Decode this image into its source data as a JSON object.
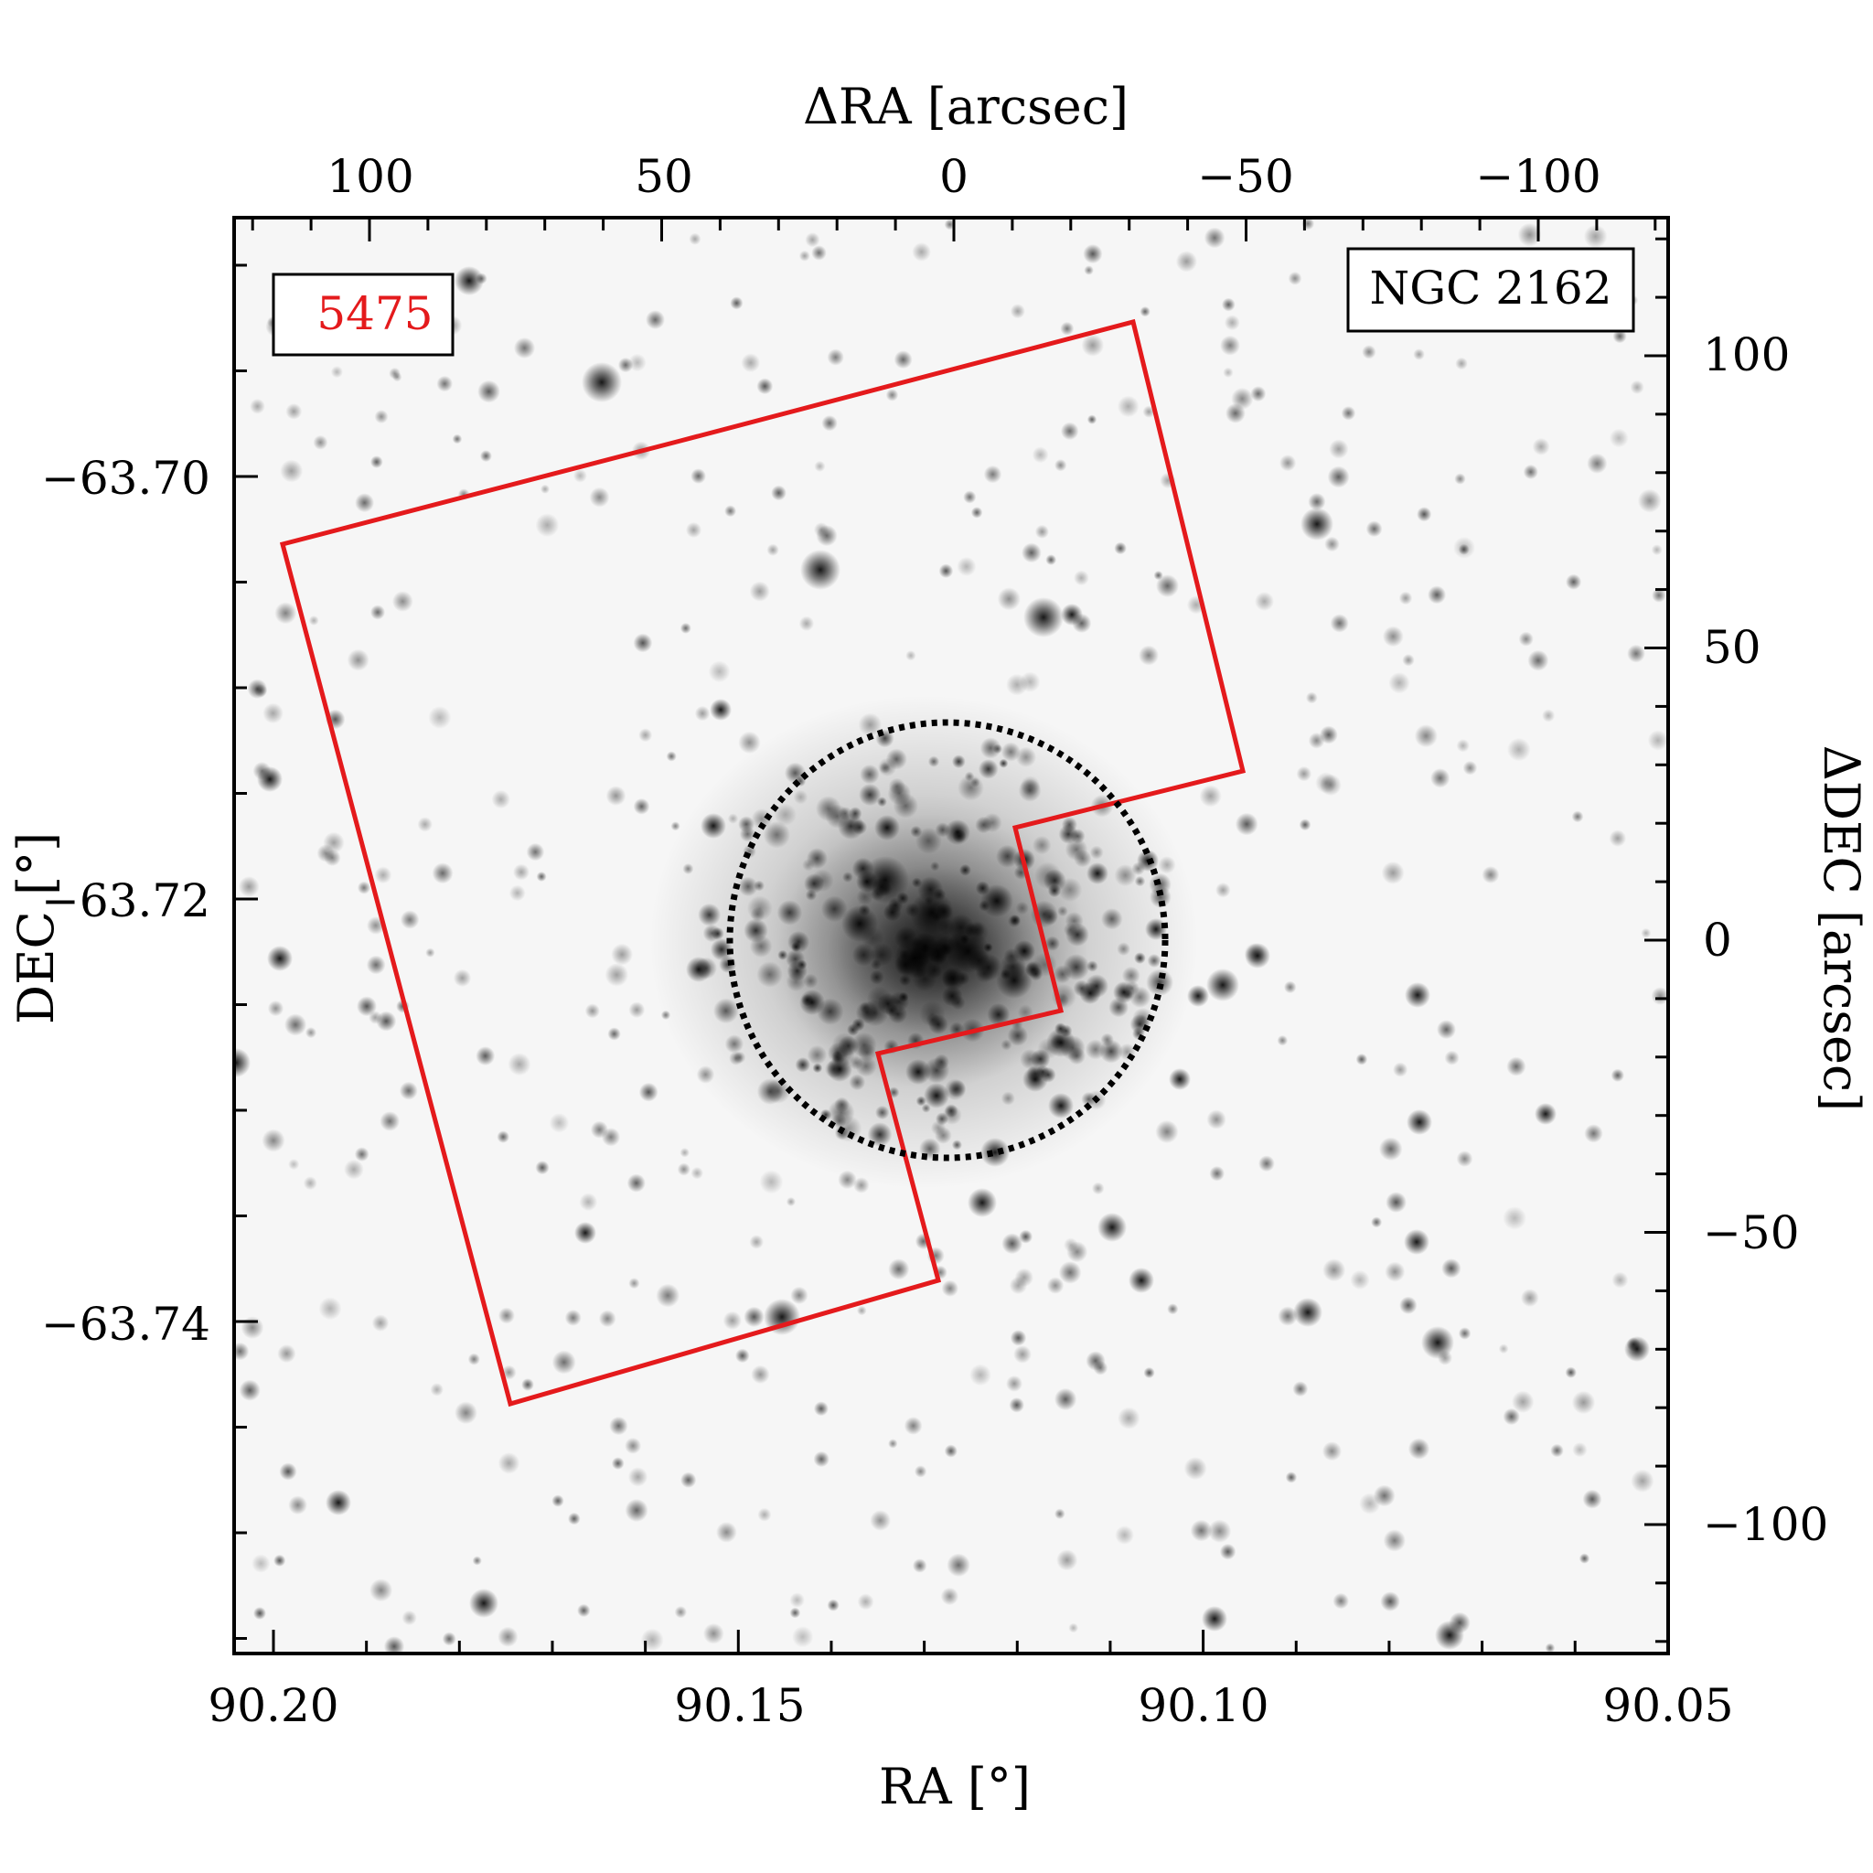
{
  "field_label": "5475",
  "object_label": "NGC 2162",
  "colors": {
    "footprint": "#e41a1c",
    "field_label": "#e41a1c",
    "circle": "#000000",
    "stars": "#000000",
    "background": "#ffffff"
  },
  "axes": {
    "bottom": {
      "title": "RA [°]",
      "ticks": [
        "90.20",
        "90.15",
        "90.10",
        "90.05"
      ]
    },
    "left": {
      "title": "DEC [°]",
      "ticks": [
        "−63.70",
        "−63.72",
        "−63.74"
      ]
    },
    "top": {
      "title": "ΔRA [arcsec]",
      "ticks": [
        "100",
        "50",
        "0",
        "−50",
        "−100"
      ]
    },
    "right": {
      "title": "ΔDEC [arcsec]",
      "ticks": [
        "100",
        "50",
        "0",
        "−50",
        "−100"
      ]
    }
  },
  "image": {
    "type": "grayscale inverted sky image",
    "ra_range": [
      90.2043,
      90.0504
    ],
    "dec_range": [
      -63.7549,
      -63.6864
    ],
    "delta_ra_range": [
      124,
      -124
    ],
    "delta_dec_range": [
      -124,
      124
    ]
  },
  "overlays": {
    "footprint_polygon_radec": [
      [
        90.1969,
        -63.7035
      ],
      [
        90.1547,
        -63.6982
      ],
      [
        90.1092,
        -63.6905
      ],
      [
        90.1006,
        -63.7137
      ],
      [
        90.1218,
        -63.7167
      ],
      [
        90.1191,
        -63.7255
      ],
      [
        90.1337,
        -63.7281
      ],
      [
        90.1279,
        -63.7385
      ],
      [
        90.1726,
        -63.7435
      ]
    ],
    "cluster_circle": {
      "center_ra": 90.1272,
      "center_dec": -63.7224,
      "radius_arcsec": 37.5
    }
  }
}
